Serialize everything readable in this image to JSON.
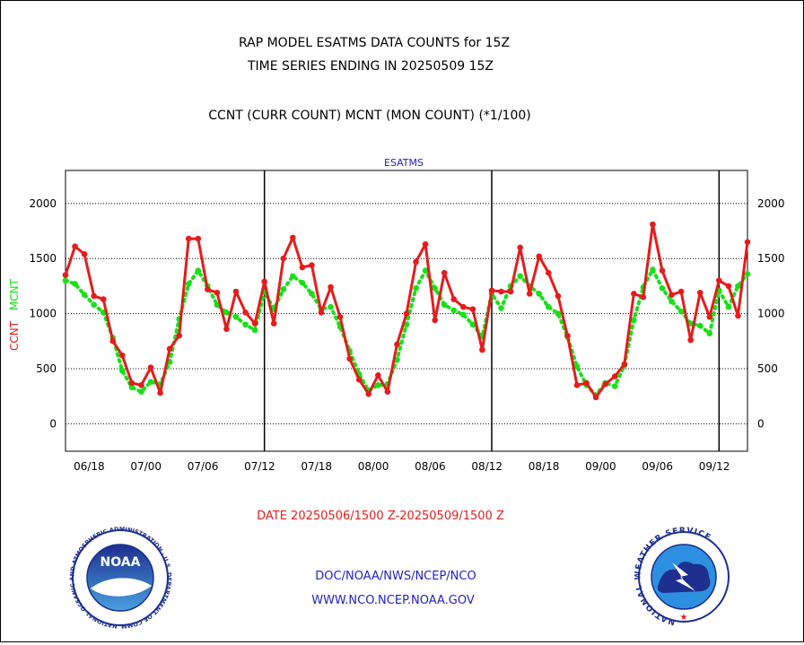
{
  "header": {
    "title_line1": "RAP MODEL ESATMS DATA COUNTS for 15Z",
    "title_line2": "TIME SERIES ENDING IN 20250509 15Z",
    "legend_line": "CCNT (CURR COUNT) MCNT (MON COUNT) (*1/100)"
  },
  "footer": {
    "date_range": "DATE 20250506/1500 Z-20250509/1500 Z",
    "org": "DOC/NOAA/NWS/NCEP/NCO",
    "url": "WWW.NCO.NCEP.NOAA.GOV"
  },
  "logos": {
    "noaa_label": "NOAA",
    "noaa_ring": "NATIONAL OCEANIC AND ATMOSPHERIC ADMINISTRATION · U.S. DEPARTMENT OF COMMERCE ·",
    "nws_ring": "NATIONAL WEATHER SERVICE"
  },
  "colors": {
    "ccnt": "#e51c1c",
    "mcnt": "#18e018",
    "title_text": "#000000",
    "footer_date": "#e51c1c",
    "footer_links": "#2222c8",
    "grid": "#000000"
  },
  "chart_data": {
    "type": "line",
    "subtitle": "ESATMS",
    "ylabel": "CCNT MCNT",
    "ylabel_parts": [
      {
        "text": "CCNT",
        "color": "#e51c1c"
      },
      {
        "text": "MCNT",
        "color": "#18e018"
      }
    ],
    "ylim": [
      -250,
      2300
    ],
    "yticks": [
      0,
      500,
      1000,
      1500,
      2000
    ],
    "xlim": [
      0,
      72
    ],
    "xticks": [
      {
        "x": 2.5,
        "label": "06/18"
      },
      {
        "x": 8.5,
        "label": "07/00"
      },
      {
        "x": 14.5,
        "label": "07/06"
      },
      {
        "x": 20.5,
        "label": "07/12"
      },
      {
        "x": 26.5,
        "label": "07/18"
      },
      {
        "x": 32.5,
        "label": "08/00"
      },
      {
        "x": 38.5,
        "label": "08/06"
      },
      {
        "x": 44.5,
        "label": "08/12"
      },
      {
        "x": 50.5,
        "label": "08/18"
      },
      {
        "x": 56.5,
        "label": "09/00"
      },
      {
        "x": 62.5,
        "label": "09/06"
      },
      {
        "x": 68.5,
        "label": "09/12"
      }
    ],
    "day_separators": [
      21,
      45,
      69
    ],
    "grid": true,
    "series": [
      {
        "name": "CCNT",
        "color": "#e51c1c",
        "style": "solid",
        "values": [
          1350,
          1610,
          1540,
          1160,
          1130,
          750,
          620,
          370,
          350,
          510,
          280,
          680,
          800,
          1680,
          1680,
          1220,
          1190,
          860,
          1200,
          1010,
          910,
          1290,
          910,
          1500,
          1690,
          1420,
          1440,
          1010,
          1240,
          970,
          590,
          400,
          270,
          440,
          290,
          720,
          1000,
          1470,
          1630,
          940,
          1370,
          1130,
          1060,
          1040,
          670,
          1210,
          1200,
          1200,
          1600,
          1180,
          1520,
          1370,
          1160,
          800,
          350,
          370,
          240,
          360,
          430,
          540,
          1180,
          1150,
          1810,
          1390,
          1170,
          1200,
          760,
          1190,
          970,
          1300,
          1250,
          980,
          1650
        ]
      },
      {
        "name": "MCNT",
        "color": "#18e018",
        "style": "dotted",
        "values": [
          1300,
          1270,
          1170,
          1080,
          1010,
          780,
          480,
          330,
          290,
          380,
          360,
          560,
          950,
          1270,
          1390,
          1250,
          1080,
          1010,
          970,
          900,
          850,
          1200,
          1040,
          1220,
          1340,
          1280,
          1180,
          1040,
          1060,
          880,
          660,
          450,
          300,
          350,
          360,
          580,
          900,
          1230,
          1390,
          1230,
          1080,
          1030,
          990,
          900,
          790,
          1180,
          1050,
          1250,
          1340,
          1250,
          1180,
          1060,
          1000,
          790,
          520,
          350,
          260,
          370,
          340,
          530,
          940,
          1240,
          1400,
          1230,
          1110,
          1020,
          910,
          890,
          820,
          1210,
          1060,
          1250,
          1360
        ]
      }
    ]
  }
}
